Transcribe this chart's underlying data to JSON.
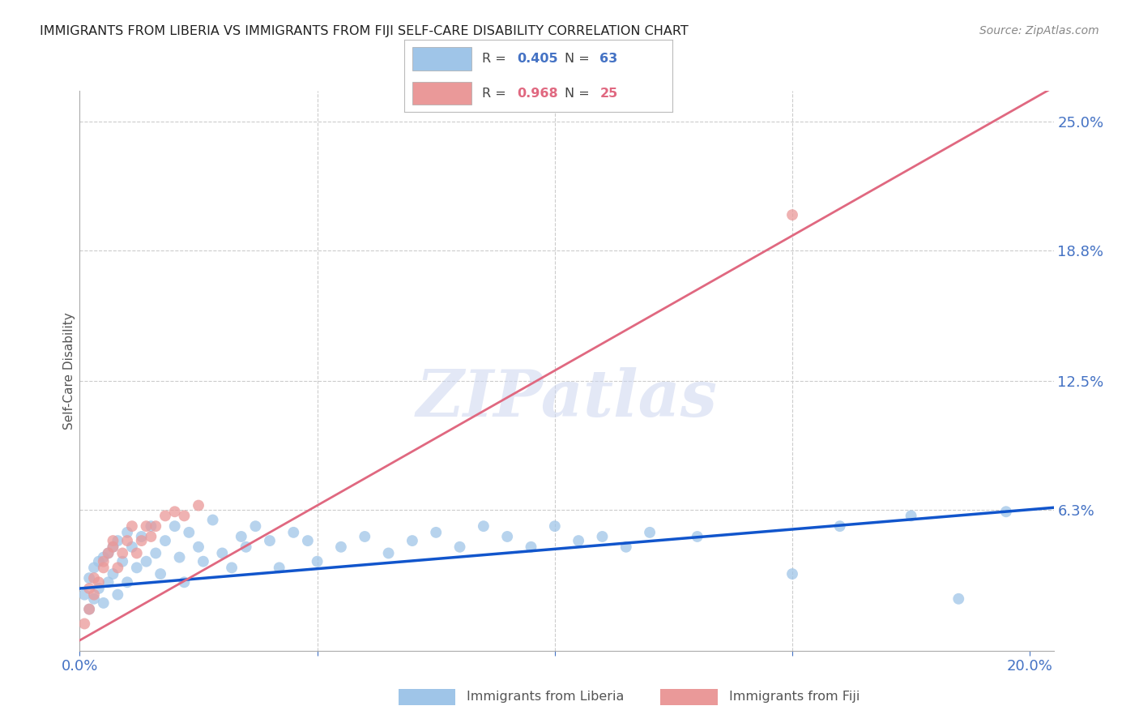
{
  "title": "IMMIGRANTS FROM LIBERIA VS IMMIGRANTS FROM FIJI SELF-CARE DISABILITY CORRELATION CHART",
  "source": "Source: ZipAtlas.com",
  "ylabel": "Self-Care Disability",
  "xlim": [
    0.0,
    0.205
  ],
  "ylim": [
    -0.005,
    0.265
  ],
  "ytick_labels_right": [
    "25.0%",
    "18.8%",
    "12.5%",
    "6.3%"
  ],
  "ytick_values_right": [
    0.25,
    0.188,
    0.125,
    0.063
  ],
  "liberia_R": 0.405,
  "liberia_N": 63,
  "fiji_R": 0.968,
  "fiji_N": 25,
  "liberia_color": "#9fc5e8",
  "fiji_color": "#ea9999",
  "liberia_line_color": "#1155cc",
  "fiji_line_color": "#e06880",
  "legend_label_liberia": "Immigrants from Liberia",
  "legend_label_fiji": "Immigrants from Fiji",
  "watermark": "ZIPatlas",
  "background_color": "#ffffff",
  "grid_color": "#cccccc",
  "title_color": "#222222",
  "axis_label_color": "#555555",
  "tick_label_color": "#4472c4",
  "liberia_line_x0": 0.0,
  "liberia_line_y0": 0.025,
  "liberia_line_x1": 0.2,
  "liberia_line_y1": 0.063,
  "fiji_line_x0": 0.0,
  "fiji_line_y0": 0.0,
  "fiji_line_x1": 0.2,
  "fiji_line_y1": 0.26
}
